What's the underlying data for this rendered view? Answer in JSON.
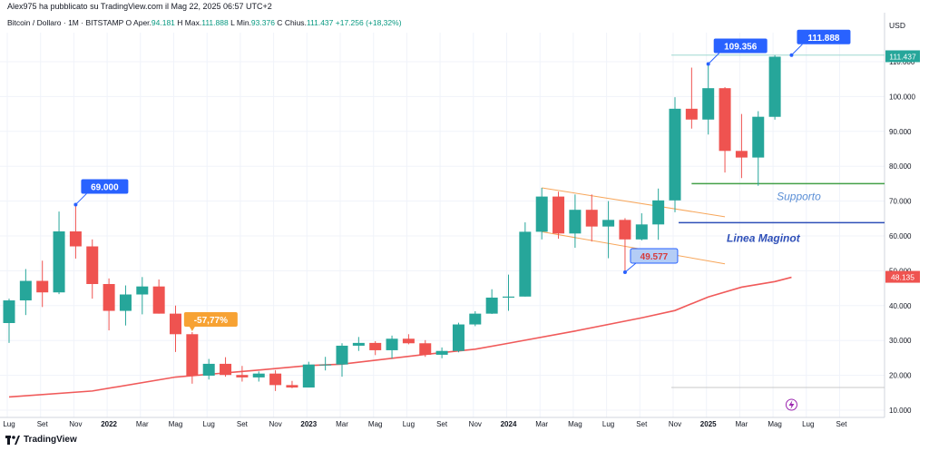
{
  "header": {
    "published_by": "Alex975 ha pubblicato su TradingView.com il Mag 22, 2025 06:57 UTC+2",
    "symbol_line": "Bitcoin / Dollaro · 1M · BITSTAMP  O",
    "open_label": "Aper.",
    "open": "94.181",
    "high_label": "H",
    "high_text": "Max.",
    "high": "111.888",
    "low_label": "L",
    "low_text": "Min.",
    "low": "93.376",
    "close_label": "C",
    "close_text": "Chius.",
    "close": "111.437",
    "change": "+17.256 (+18,32%)"
  },
  "currency": "USD",
  "footer": {
    "brand": "TradingView"
  },
  "colors": {
    "up": "#26a69a",
    "down": "#ef5350",
    "ma": "#f05a5a",
    "channel": "#f7a65a",
    "callout": "#2962ff",
    "support": "#43a047",
    "maginot": "#2e4fb8"
  },
  "chart_data": {
    "type": "candlestick",
    "y_axis": {
      "ticks": [
        "10.000",
        "20.000",
        "30.000",
        "40.000",
        "50.000",
        "60.000",
        "70.000",
        "80.000",
        "90.000",
        "100.000",
        "110.000"
      ],
      "range": [
        10000,
        115000
      ]
    },
    "x_axis": {
      "labels": [
        {
          "text": "Lug",
          "i": 0,
          "bold": false
        },
        {
          "text": "Set",
          "i": 2,
          "bold": false
        },
        {
          "text": "Nov",
          "i": 4,
          "bold": false
        },
        {
          "text": "2022",
          "i": 6,
          "bold": true
        },
        {
          "text": "Mar",
          "i": 8,
          "bold": false
        },
        {
          "text": "Mag",
          "i": 10,
          "bold": false
        },
        {
          "text": "Lug",
          "i": 12,
          "bold": false
        },
        {
          "text": "Set",
          "i": 14,
          "bold": false
        },
        {
          "text": "Nov",
          "i": 16,
          "bold": false
        },
        {
          "text": "2023",
          "i": 18,
          "bold": true
        },
        {
          "text": "Mar",
          "i": 20,
          "bold": false
        },
        {
          "text": "Mag",
          "i": 22,
          "bold": false
        },
        {
          "text": "Lug",
          "i": 24,
          "bold": false
        },
        {
          "text": "Set",
          "i": 26,
          "bold": false
        },
        {
          "text": "Nov",
          "i": 28,
          "bold": false
        },
        {
          "text": "2024",
          "i": 30,
          "bold": true
        },
        {
          "text": "Mar",
          "i": 32,
          "bold": false
        },
        {
          "text": "Mag",
          "i": 34,
          "bold": false
        },
        {
          "text": "Lug",
          "i": 36,
          "bold": false
        },
        {
          "text": "Set",
          "i": 38,
          "bold": false
        },
        {
          "text": "Nov",
          "i": 40,
          "bold": false
        },
        {
          "text": "2025",
          "i": 42,
          "bold": true
        },
        {
          "text": "Mar",
          "i": 44,
          "bold": false
        },
        {
          "text": "Mag",
          "i": 46,
          "bold": false
        },
        {
          "text": "Lug",
          "i": 48,
          "bold": false
        },
        {
          "text": "Set",
          "i": 50,
          "bold": false
        }
      ]
    },
    "candles": [
      {
        "o": 35000,
        "h": 42000,
        "l": 29300,
        "c": 41500
      },
      {
        "o": 41500,
        "h": 50500,
        "l": 37300,
        "c": 47100
      },
      {
        "o": 47100,
        "h": 52900,
        "l": 39600,
        "c": 43800
      },
      {
        "o": 43800,
        "h": 67000,
        "l": 43300,
        "c": 61300
      },
      {
        "o": 61300,
        "h": 69000,
        "l": 53500,
        "c": 57000
      },
      {
        "o": 57000,
        "h": 59000,
        "l": 42000,
        "c": 46200
      },
      {
        "o": 46200,
        "h": 47800,
        "l": 32900,
        "c": 38500
      },
      {
        "o": 38500,
        "h": 45800,
        "l": 34300,
        "c": 43200
      },
      {
        "o": 43200,
        "h": 48200,
        "l": 37500,
        "c": 45500
      },
      {
        "o": 45500,
        "h": 47500,
        "l": 37700,
        "c": 37700
      },
      {
        "o": 37700,
        "h": 40000,
        "l": 26700,
        "c": 31800
      },
      {
        "o": 31800,
        "h": 32400,
        "l": 17600,
        "c": 19900
      },
      {
        "o": 19900,
        "h": 24700,
        "l": 18800,
        "c": 23300
      },
      {
        "o": 23300,
        "h": 25200,
        "l": 19600,
        "c": 20100
      },
      {
        "o": 20100,
        "h": 22700,
        "l": 18200,
        "c": 19400
      },
      {
        "o": 19400,
        "h": 21100,
        "l": 18200,
        "c": 20500
      },
      {
        "o": 20500,
        "h": 21500,
        "l": 15500,
        "c": 17200
      },
      {
        "o": 17200,
        "h": 18400,
        "l": 16300,
        "c": 16500
      },
      {
        "o": 16500,
        "h": 23900,
        "l": 16500,
        "c": 23100
      },
      {
        "o": 23100,
        "h": 25300,
        "l": 21400,
        "c": 23100
      },
      {
        "o": 23100,
        "h": 29200,
        "l": 19600,
        "c": 28500
      },
      {
        "o": 28500,
        "h": 31000,
        "l": 27000,
        "c": 29300
      },
      {
        "o": 29300,
        "h": 29800,
        "l": 25800,
        "c": 27200
      },
      {
        "o": 27200,
        "h": 31400,
        "l": 24800,
        "c": 30500
      },
      {
        "o": 30500,
        "h": 31800,
        "l": 28900,
        "c": 29200
      },
      {
        "o": 29200,
        "h": 30100,
        "l": 25300,
        "c": 25900
      },
      {
        "o": 25900,
        "h": 28000,
        "l": 24900,
        "c": 27000
      },
      {
        "o": 27000,
        "h": 35100,
        "l": 26600,
        "c": 34600
      },
      {
        "o": 34600,
        "h": 38400,
        "l": 34100,
        "c": 37700
      },
      {
        "o": 37700,
        "h": 44700,
        "l": 37600,
        "c": 42300
      },
      {
        "o": 42300,
        "h": 48900,
        "l": 38500,
        "c": 42600
      },
      {
        "o": 42600,
        "h": 63900,
        "l": 42600,
        "c": 61200
      },
      {
        "o": 61200,
        "h": 73800,
        "l": 59000,
        "c": 71300
      },
      {
        "o": 71300,
        "h": 72700,
        "l": 59200,
        "c": 60700
      },
      {
        "o": 60700,
        "h": 71900,
        "l": 56600,
        "c": 67500
      },
      {
        "o": 67500,
        "h": 71900,
        "l": 58400,
        "c": 62700
      },
      {
        "o": 62700,
        "h": 70000,
        "l": 53600,
        "c": 64600
      },
      {
        "o": 64600,
        "h": 65100,
        "l": 49577,
        "c": 59000
      },
      {
        "o": 59000,
        "h": 66500,
        "l": 58700,
        "c": 63300
      },
      {
        "o": 63300,
        "h": 73600,
        "l": 58900,
        "c": 70200
      },
      {
        "o": 70200,
        "h": 99800,
        "l": 66800,
        "c": 96500
      },
      {
        "o": 96500,
        "h": 108300,
        "l": 90800,
        "c": 93400
      },
      {
        "o": 93400,
        "h": 109356,
        "l": 89100,
        "c": 102400
      },
      {
        "o": 102400,
        "h": 102700,
        "l": 78200,
        "c": 84400
      },
      {
        "o": 84400,
        "h": 95000,
        "l": 76600,
        "c": 82500
      },
      {
        "o": 82500,
        "h": 95800,
        "l": 74400,
        "c": 94200
      },
      {
        "o": 94181,
        "h": 111888,
        "l": 93376,
        "c": 111437
      }
    ],
    "moving_average": [
      [
        0,
        13800
      ],
      [
        5,
        15500
      ],
      [
        10,
        19500
      ],
      [
        15,
        21500
      ],
      [
        18,
        22800
      ],
      [
        20,
        23200
      ],
      [
        25,
        26000
      ],
      [
        28,
        27500
      ],
      [
        30,
        29200
      ],
      [
        34,
        32700
      ],
      [
        38,
        36500
      ],
      [
        40,
        38600
      ],
      [
        42,
        42500
      ],
      [
        44,
        45300
      ],
      [
        46,
        46900
      ],
      [
        47,
        48135
      ]
    ],
    "callouts": [
      {
        "label": "69.000",
        "value": 69000,
        "i": 4
      },
      {
        "label": "-57,77%",
        "value": 32400,
        "i": 11
      },
      {
        "label": "49.577",
        "value": 49577,
        "i": 37
      },
      {
        "label": "109.356",
        "value": 109356,
        "i": 42
      },
      {
        "label": "111.888",
        "value": 111888,
        "i": 47
      }
    ],
    "price_tags": [
      {
        "label": "111.437",
        "value": 111437,
        "color": "#26a69a"
      },
      {
        "label": "48.135",
        "value": 48135,
        "color": "#ef5350"
      }
    ],
    "support": {
      "label": "Supporto",
      "value": 75000,
      "from_i": 41,
      "to_i": 52
    },
    "maginot": {
      "label": "Linea Maginot",
      "value": 63800,
      "from_i": 40,
      "to_i": 52
    },
    "channel": {
      "upper": [
        [
          32,
          73800
        ],
        [
          43,
          65500
        ]
      ],
      "lower": [
        [
          32,
          61200
        ],
        [
          43,
          52000
        ]
      ]
    },
    "ath_line": {
      "value": 111888,
      "from_i": 40,
      "to_i": 52
    },
    "low_line": {
      "value": 16500,
      "from_i": 40,
      "to_i": 52
    }
  }
}
